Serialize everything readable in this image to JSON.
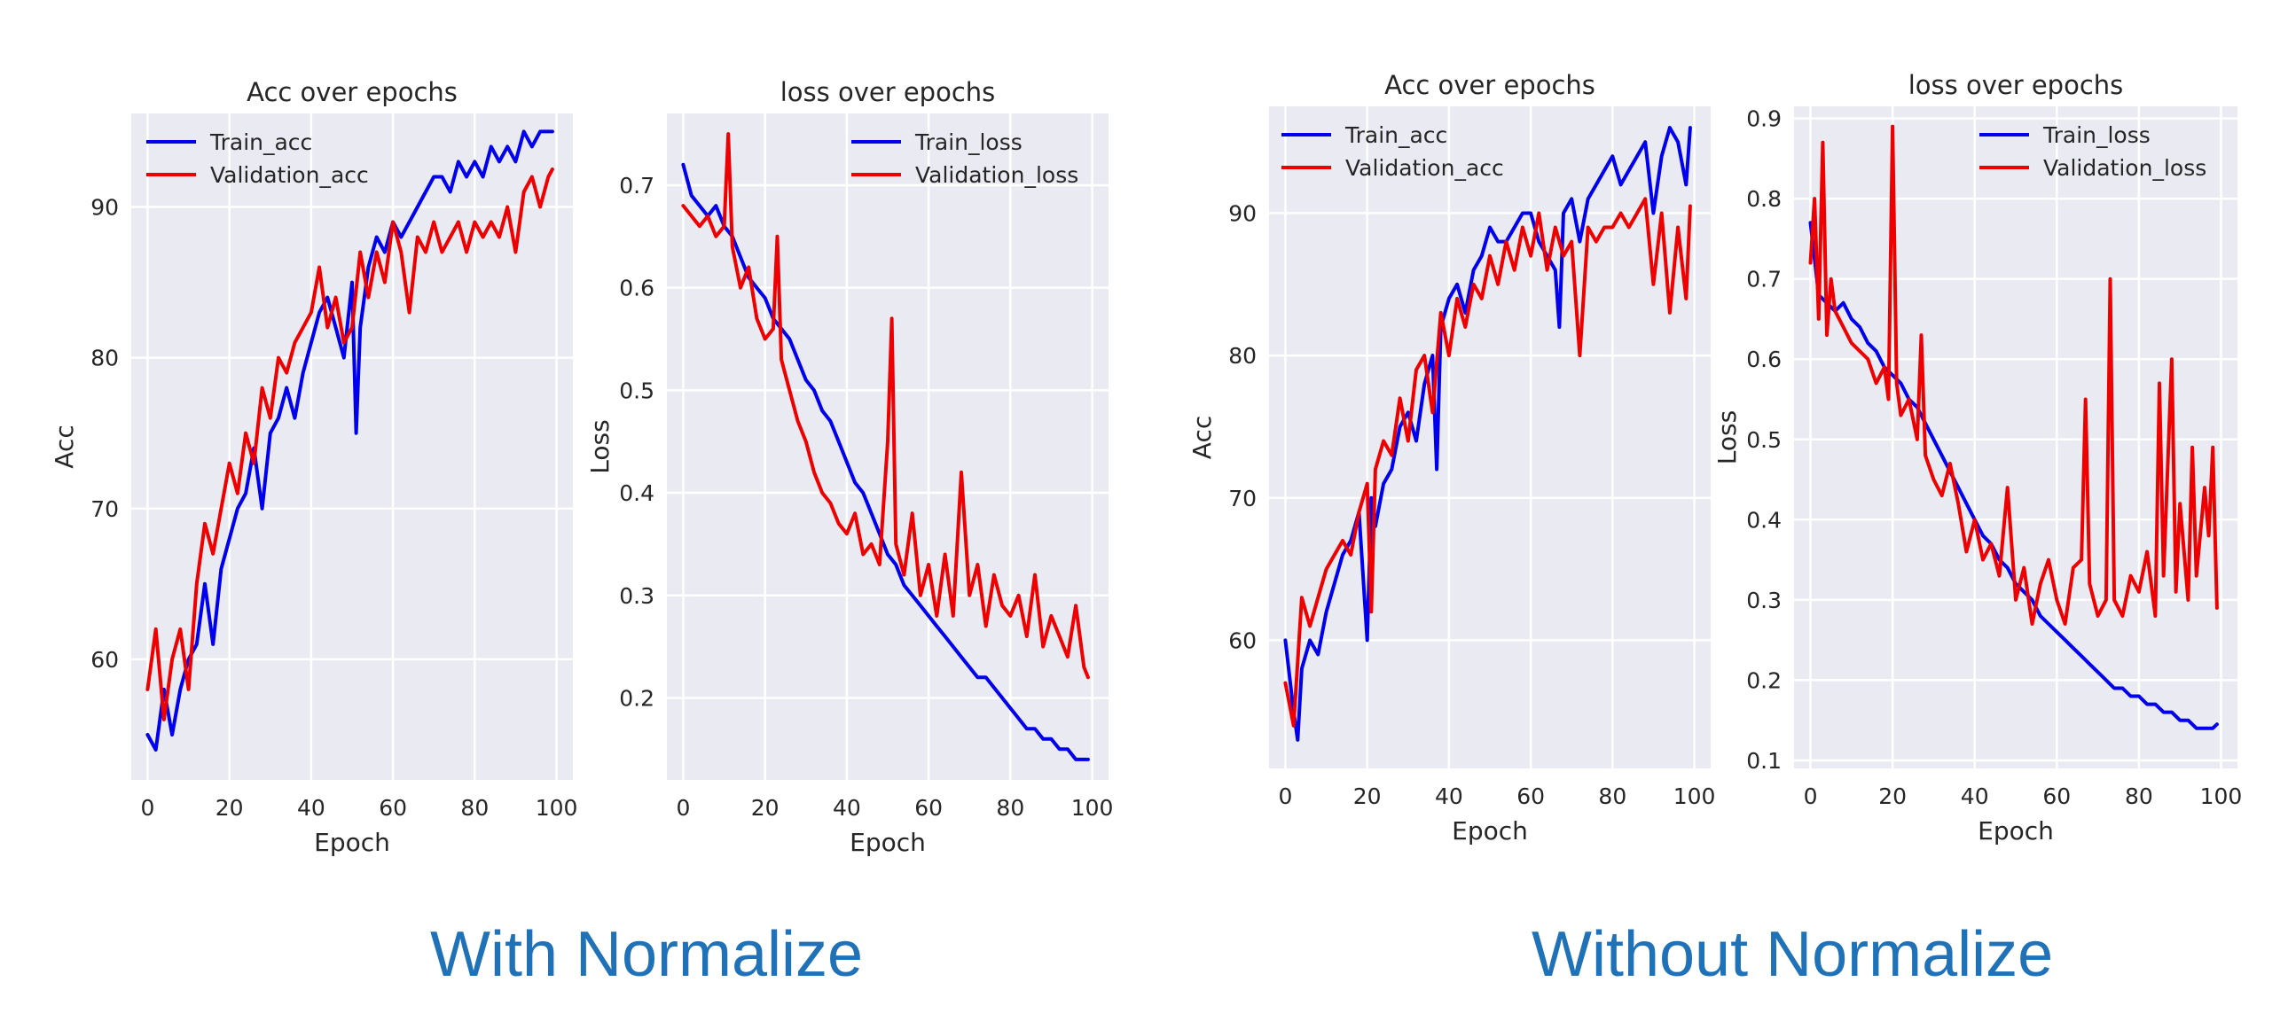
{
  "captions": {
    "left": "With Normalize",
    "right": "Without Normalize"
  },
  "colors": {
    "background": "#ffffff",
    "plot_background": "#eaeaf2",
    "grid": "#ffffff",
    "train": "#0000ee",
    "validation": "#ee0000",
    "caption": "#2072b8",
    "text": "#262626"
  },
  "chart_data": [
    {
      "type": "line",
      "group": "With Normalize",
      "title": "Acc over epochs",
      "xlabel": "Epoch",
      "ylabel": "Acc",
      "xlim": [
        -4,
        104
      ],
      "ylim": [
        52,
        96.2
      ],
      "xticks": [
        0,
        20,
        40,
        60,
        80,
        100
      ],
      "yticks": [
        60,
        70,
        80,
        90
      ],
      "grid": true,
      "legend": "upper-left",
      "series": [
        {
          "name": "Train_acc",
          "color": "#0000ee",
          "x": [
            0,
            2,
            4,
            6,
            8,
            10,
            12,
            14,
            16,
            18,
            20,
            22,
            24,
            26,
            28,
            30,
            32,
            34,
            36,
            38,
            40,
            42,
            44,
            46,
            48,
            50,
            51,
            52,
            54,
            56,
            58,
            60,
            62,
            64,
            66,
            68,
            70,
            72,
            74,
            76,
            78,
            80,
            82,
            84,
            86,
            88,
            90,
            92,
            94,
            96,
            98,
            99
          ],
          "y": [
            55,
            54,
            58,
            55,
            58,
            60,
            61,
            65,
            61,
            66,
            68,
            70,
            71,
            74,
            70,
            75,
            76,
            78,
            76,
            79,
            81,
            83,
            84,
            82,
            80,
            85,
            75,
            82,
            86,
            88,
            87,
            89,
            88,
            89,
            90,
            91,
            92,
            92,
            91,
            93,
            92,
            93,
            92,
            94,
            93,
            94,
            93,
            95,
            94,
            95,
            95,
            95
          ]
        },
        {
          "name": "Validation_acc",
          "color": "#ee0000",
          "x": [
            0,
            2,
            4,
            6,
            8,
            10,
            12,
            14,
            16,
            18,
            20,
            22,
            24,
            26,
            28,
            30,
            32,
            34,
            36,
            38,
            40,
            42,
            44,
            46,
            48,
            50,
            52,
            54,
            56,
            58,
            60,
            62,
            64,
            66,
            68,
            70,
            72,
            74,
            76,
            78,
            80,
            82,
            84,
            86,
            88,
            90,
            92,
            94,
            96,
            98,
            99
          ],
          "y": [
            58,
            62,
            56,
            60,
            62,
            58,
            65,
            69,
            67,
            70,
            73,
            71,
            75,
            73,
            78,
            76,
            80,
            79,
            81,
            82,
            83,
            86,
            82,
            84,
            81,
            82,
            87,
            84,
            87,
            85,
            89,
            87,
            83,
            88,
            87,
            89,
            87,
            88,
            89,
            87,
            89,
            88,
            89,
            88,
            90,
            87,
            91,
            92,
            90,
            92,
            92.5
          ]
        }
      ]
    },
    {
      "type": "line",
      "group": "With Normalize",
      "title": "loss over epochs",
      "xlabel": "Epoch",
      "ylabel": "Loss",
      "xlim": [
        -4,
        104
      ],
      "ylim": [
        0.12,
        0.77
      ],
      "xticks": [
        0,
        20,
        40,
        60,
        80,
        100
      ],
      "yticks": [
        0.2,
        0.3,
        0.4,
        0.5,
        0.6,
        0.7
      ],
      "grid": true,
      "legend": "upper-right",
      "series": [
        {
          "name": "Train_loss",
          "color": "#0000ee",
          "x": [
            0,
            2,
            4,
            6,
            8,
            10,
            12,
            14,
            16,
            18,
            20,
            22,
            24,
            26,
            28,
            30,
            32,
            34,
            36,
            38,
            40,
            42,
            44,
            46,
            48,
            50,
            52,
            54,
            56,
            58,
            60,
            62,
            64,
            66,
            68,
            70,
            72,
            74,
            76,
            78,
            80,
            82,
            84,
            86,
            88,
            90,
            92,
            94,
            96,
            98,
            99
          ],
          "y": [
            0.72,
            0.69,
            0.68,
            0.67,
            0.68,
            0.66,
            0.65,
            0.63,
            0.61,
            0.6,
            0.59,
            0.57,
            0.56,
            0.55,
            0.53,
            0.51,
            0.5,
            0.48,
            0.47,
            0.45,
            0.43,
            0.41,
            0.4,
            0.38,
            0.36,
            0.34,
            0.33,
            0.31,
            0.3,
            0.29,
            0.28,
            0.27,
            0.26,
            0.25,
            0.24,
            0.23,
            0.22,
            0.22,
            0.21,
            0.2,
            0.19,
            0.18,
            0.17,
            0.17,
            0.16,
            0.16,
            0.15,
            0.15,
            0.14,
            0.14,
            0.14
          ]
        },
        {
          "name": "Validation_loss",
          "color": "#ee0000",
          "x": [
            0,
            2,
            4,
            6,
            8,
            10,
            11,
            12,
            14,
            16,
            18,
            20,
            22,
            23,
            24,
            26,
            28,
            30,
            32,
            34,
            36,
            38,
            40,
            42,
            44,
            46,
            48,
            50,
            51,
            52,
            54,
            56,
            58,
            60,
            62,
            64,
            66,
            68,
            70,
            72,
            74,
            76,
            78,
            80,
            82,
            84,
            86,
            88,
            90,
            92,
            94,
            96,
            98,
            99
          ],
          "y": [
            0.68,
            0.67,
            0.66,
            0.67,
            0.65,
            0.66,
            0.75,
            0.64,
            0.6,
            0.62,
            0.57,
            0.55,
            0.56,
            0.65,
            0.53,
            0.5,
            0.47,
            0.45,
            0.42,
            0.4,
            0.39,
            0.37,
            0.36,
            0.38,
            0.34,
            0.35,
            0.33,
            0.45,
            0.57,
            0.35,
            0.32,
            0.38,
            0.3,
            0.33,
            0.28,
            0.34,
            0.28,
            0.42,
            0.3,
            0.33,
            0.27,
            0.32,
            0.29,
            0.28,
            0.3,
            0.26,
            0.32,
            0.25,
            0.28,
            0.26,
            0.24,
            0.29,
            0.23,
            0.22
          ]
        }
      ]
    },
    {
      "type": "line",
      "group": "Without Normalize",
      "title": "Acc over epochs",
      "xlabel": "Epoch",
      "ylabel": "Acc",
      "xlim": [
        -4,
        104
      ],
      "ylim": [
        51,
        97.5
      ],
      "xticks": [
        0,
        20,
        40,
        60,
        80,
        100
      ],
      "yticks": [
        60,
        70,
        80,
        90
      ],
      "grid": true,
      "legend": "upper-left",
      "series": [
        {
          "name": "Train_acc",
          "color": "#0000ee",
          "x": [
            0,
            2,
            3,
            4,
            6,
            8,
            10,
            12,
            14,
            16,
            18,
            20,
            21,
            22,
            24,
            26,
            28,
            30,
            32,
            34,
            36,
            37,
            38,
            40,
            42,
            44,
            46,
            48,
            50,
            52,
            54,
            56,
            58,
            60,
            62,
            64,
            66,
            67,
            68,
            70,
            72,
            74,
            76,
            78,
            80,
            82,
            84,
            86,
            88,
            90,
            92,
            94,
            96,
            98,
            99
          ],
          "y": [
            60,
            55,
            53,
            58,
            60,
            59,
            62,
            64,
            66,
            67,
            69,
            60,
            70,
            68,
            71,
            72,
            75,
            76,
            74,
            78,
            80,
            72,
            82,
            84,
            85,
            83,
            86,
            87,
            89,
            88,
            88,
            89,
            90,
            90,
            88,
            87,
            86,
            82,
            90,
            91,
            88,
            91,
            92,
            93,
            94,
            92,
            93,
            94,
            95,
            90,
            94,
            96,
            95,
            92,
            96
          ]
        },
        {
          "name": "Validation_acc",
          "color": "#ee0000",
          "x": [
            0,
            2,
            4,
            6,
            8,
            10,
            12,
            14,
            16,
            18,
            20,
            21,
            22,
            24,
            26,
            28,
            30,
            32,
            34,
            36,
            38,
            40,
            42,
            44,
            46,
            48,
            50,
            52,
            54,
            56,
            58,
            60,
            62,
            64,
            66,
            68,
            70,
            72,
            74,
            76,
            78,
            80,
            82,
            84,
            86,
            88,
            90,
            92,
            94,
            96,
            98,
            99
          ],
          "y": [
            57,
            54,
            63,
            61,
            63,
            65,
            66,
            67,
            66,
            69,
            71,
            62,
            72,
            74,
            73,
            77,
            74,
            79,
            80,
            76,
            83,
            80,
            84,
            82,
            85,
            84,
            87,
            85,
            88,
            86,
            89,
            87,
            90,
            86,
            89,
            87,
            88,
            80,
            89,
            88,
            89,
            89,
            90,
            89,
            90,
            91,
            85,
            90,
            83,
            89,
            84,
            90.5
          ]
        }
      ]
    },
    {
      "type": "line",
      "group": "Without Normalize",
      "title": "loss over epochs",
      "xlabel": "Epoch",
      "ylabel": "Loss",
      "xlim": [
        -4,
        104
      ],
      "ylim": [
        0.09,
        0.915
      ],
      "xticks": [
        0,
        20,
        40,
        60,
        80,
        100
      ],
      "yticks": [
        0.1,
        0.2,
        0.3,
        0.4,
        0.5,
        0.6,
        0.7,
        0.8,
        0.9
      ],
      "grid": true,
      "legend": "upper-right",
      "series": [
        {
          "name": "Train_loss",
          "color": "#0000ee",
          "x": [
            0,
            2,
            4,
            6,
            8,
            10,
            12,
            14,
            16,
            18,
            20,
            22,
            24,
            26,
            28,
            30,
            32,
            34,
            36,
            38,
            40,
            42,
            44,
            46,
            48,
            50,
            52,
            54,
            56,
            58,
            60,
            62,
            64,
            66,
            68,
            70,
            72,
            74,
            76,
            78,
            80,
            82,
            84,
            86,
            88,
            90,
            92,
            94,
            96,
            98,
            99
          ],
          "y": [
            0.77,
            0.68,
            0.67,
            0.66,
            0.67,
            0.65,
            0.64,
            0.62,
            0.61,
            0.59,
            0.58,
            0.57,
            0.55,
            0.54,
            0.52,
            0.5,
            0.48,
            0.46,
            0.44,
            0.42,
            0.4,
            0.38,
            0.37,
            0.35,
            0.34,
            0.32,
            0.31,
            0.3,
            0.28,
            0.27,
            0.26,
            0.25,
            0.24,
            0.23,
            0.22,
            0.21,
            0.2,
            0.19,
            0.19,
            0.18,
            0.18,
            0.17,
            0.17,
            0.16,
            0.16,
            0.15,
            0.15,
            0.14,
            0.14,
            0.14,
            0.145
          ]
        },
        {
          "name": "Validation_loss",
          "color": "#ee0000",
          "x": [
            0,
            1,
            2,
            3,
            4,
            5,
            6,
            8,
            10,
            12,
            14,
            16,
            18,
            19,
            20,
            21,
            22,
            24,
            26,
            27,
            28,
            30,
            32,
            34,
            36,
            38,
            40,
            42,
            44,
            46,
            48,
            50,
            52,
            54,
            56,
            58,
            60,
            62,
            64,
            66,
            67,
            68,
            70,
            72,
            73,
            74,
            76,
            78,
            80,
            82,
            84,
            85,
            86,
            88,
            89,
            90,
            92,
            93,
            94,
            96,
            97,
            98,
            99
          ],
          "y": [
            0.72,
            0.8,
            0.65,
            0.87,
            0.63,
            0.7,
            0.66,
            0.64,
            0.62,
            0.61,
            0.6,
            0.57,
            0.59,
            0.55,
            0.89,
            0.57,
            0.53,
            0.55,
            0.5,
            0.63,
            0.48,
            0.45,
            0.43,
            0.47,
            0.42,
            0.36,
            0.4,
            0.35,
            0.37,
            0.33,
            0.44,
            0.3,
            0.34,
            0.27,
            0.32,
            0.35,
            0.3,
            0.27,
            0.34,
            0.35,
            0.55,
            0.32,
            0.28,
            0.3,
            0.7,
            0.3,
            0.28,
            0.33,
            0.31,
            0.36,
            0.28,
            0.57,
            0.33,
            0.6,
            0.31,
            0.42,
            0.3,
            0.49,
            0.33,
            0.44,
            0.38,
            0.49,
            0.29
          ]
        }
      ]
    }
  ]
}
